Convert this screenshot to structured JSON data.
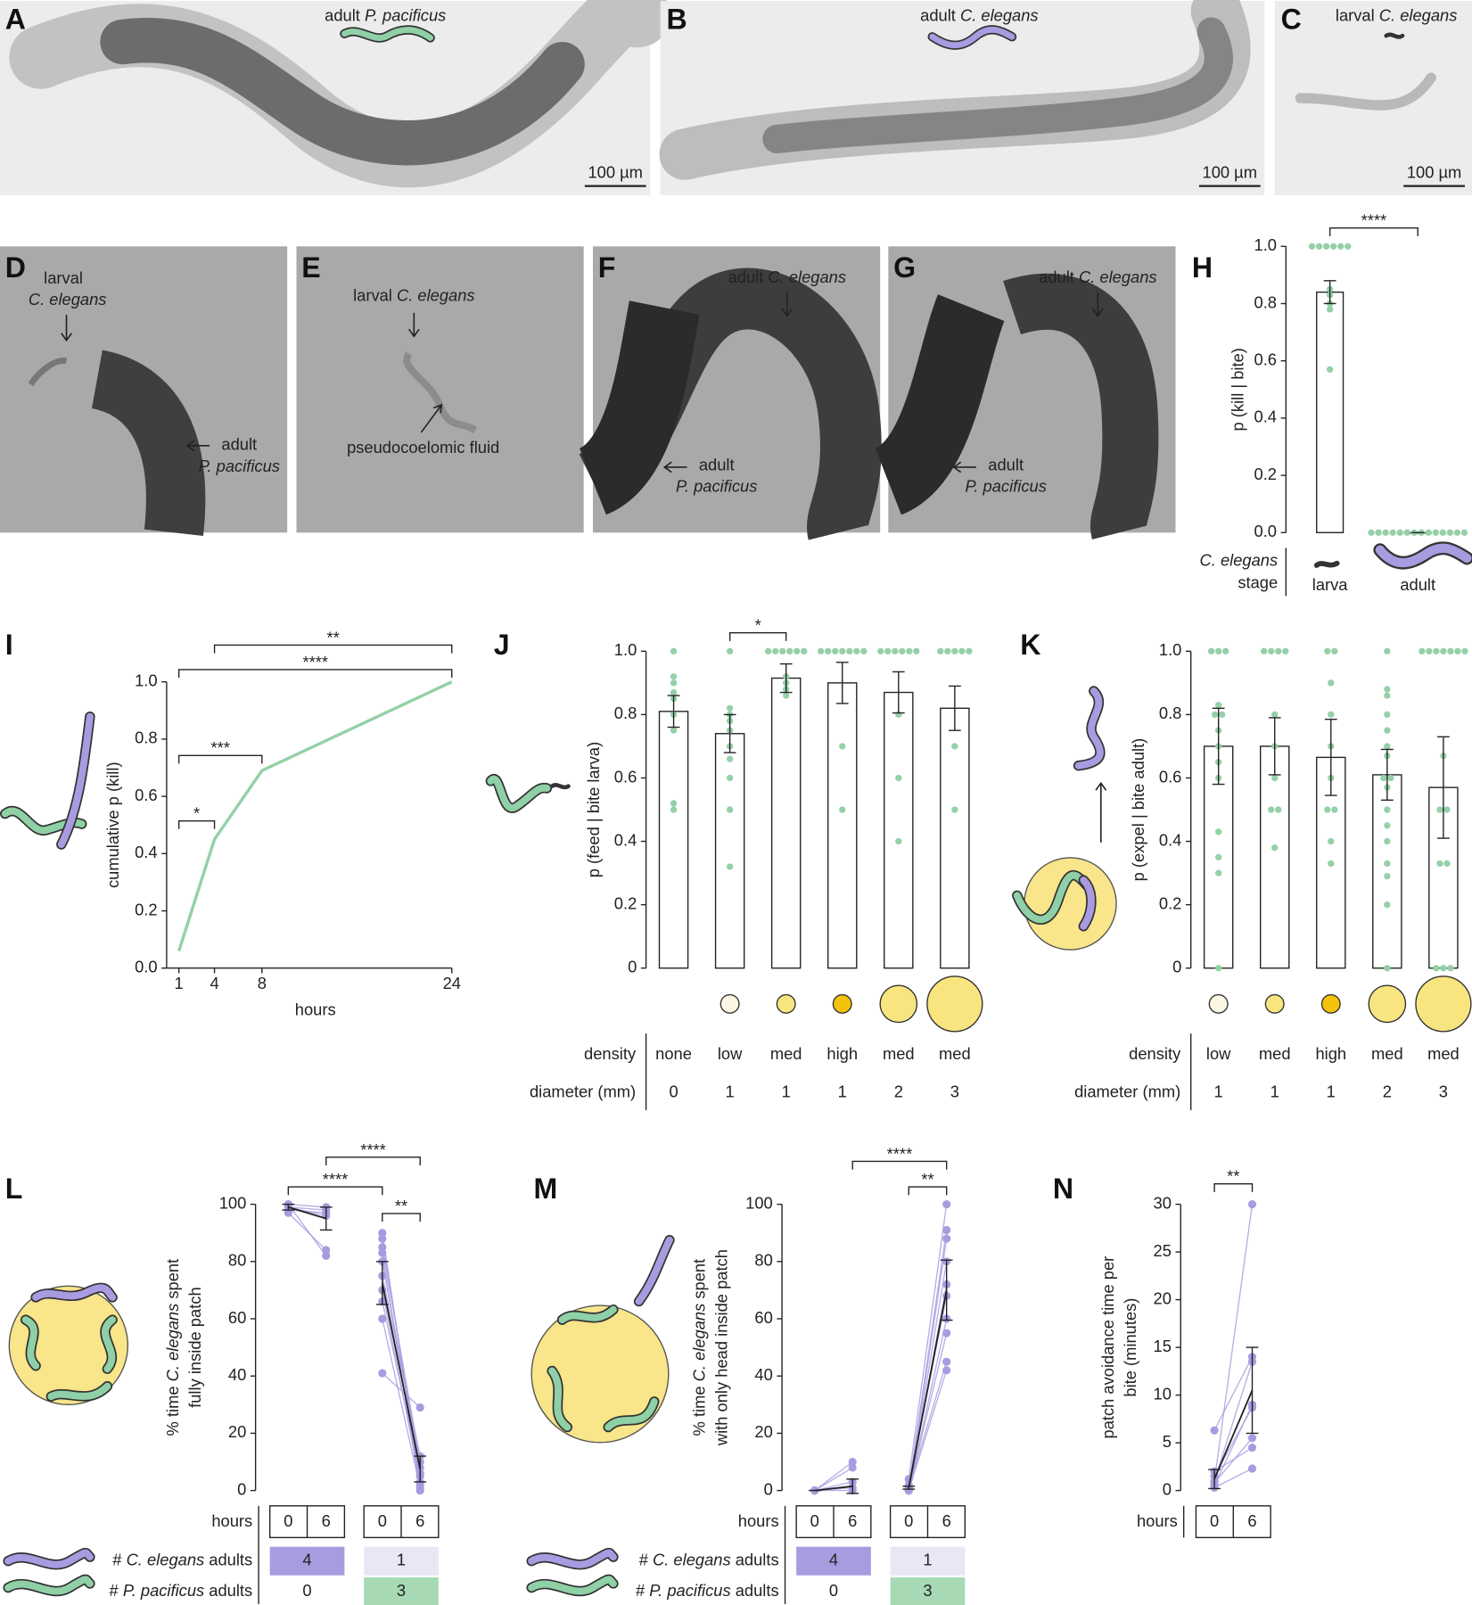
{
  "images": {
    "A": {
      "letter": "A",
      "caption": [
        "adult ",
        "P. pacificus"
      ],
      "scale_bar": "100 µm"
    },
    "B": {
      "letter": "B",
      "caption": [
        "adult ",
        "C. elegans"
      ],
      "scale_bar": "100 µm"
    },
    "C": {
      "letter": "C",
      "caption": [
        "larval ",
        "C. elegans"
      ],
      "scale_bar": "100 µm"
    },
    "D": {
      "letter": "D",
      "labels": [
        "larval",
        "C. elegans",
        "adult",
        "P. pacificus"
      ]
    },
    "E": {
      "letter": "E",
      "labels": [
        "larval ",
        "C. elegans",
        "pseudocoelomic fluid"
      ]
    },
    "F": {
      "letter": "F",
      "labels": [
        "adult ",
        "C. elegans",
        "adult",
        "P. pacificus"
      ]
    },
    "G": {
      "letter": "G",
      "labels": [
        "adult ",
        "C. elegans",
        "adult",
        "P. pacificus"
      ]
    }
  },
  "chart_data": [
    {
      "letter": "H",
      "type": "bar",
      "categories": [
        "larva",
        "adult"
      ],
      "values": [
        0.84,
        0
      ],
      "errors": [
        0.04,
        0
      ],
      "points": [
        [
          1,
          1,
          1,
          1,
          1,
          1,
          0.8,
          0.83,
          0.85,
          0.78,
          0.57
        ],
        [
          0,
          0,
          0,
          0,
          0,
          0,
          0,
          0,
          0,
          0,
          0,
          0,
          0,
          0
        ]
      ],
      "ylabel": "p (kill | bite)",
      "ylim": [
        0,
        1
      ],
      "yticks": [
        {
          "value": 0,
          "label": "0.0"
        },
        0.2,
        0.4,
        0.6,
        0.8,
        {
          "value": 1,
          "label": "1.0"
        }
      ],
      "significance": [
        {
          "from": 0,
          "to": 1,
          "label": "****"
        }
      ],
      "row_labels": [
        "C. elegans",
        "stage"
      ],
      "color": "#95d0a8"
    },
    {
      "letter": "I",
      "type": "line",
      "x": [
        1,
        4,
        8,
        24
      ],
      "values": [
        0.06,
        0.45,
        0.69,
        1.0
      ],
      "xlim": [
        1,
        24
      ],
      "xticks": [
        1,
        4,
        8,
        24
      ],
      "ylim": [
        0,
        1
      ],
      "yticks": [
        {
          "value": 0,
          "label": "0.0"
        },
        0.2,
        0.4,
        0.6,
        0.8,
        {
          "value": 1,
          "label": "1.0"
        }
      ],
      "xlabel": "hours",
      "ylabel": "cumulative p (kill)",
      "color": "#95d0a8",
      "significance": [
        {
          "from": 1,
          "to": 4,
          "label": "*"
        },
        {
          "from": 1,
          "to": 8,
          "label": "***"
        },
        {
          "from": 1,
          "to": 24,
          "label": "****"
        },
        {
          "from": 4,
          "to": 24,
          "label": "**"
        }
      ]
    },
    {
      "letter": "J",
      "type": "bar",
      "values": [
        0.81,
        0.74,
        0.915,
        0.9,
        0.87,
        0.82
      ],
      "errors": [
        0.05,
        0.06,
        0.045,
        0.065,
        0.065,
        0.07
      ],
      "points": [
        [
          1,
          0.92,
          0.9,
          0.87,
          0.85,
          0.8,
          0.75,
          0.52,
          0.5
        ],
        [
          1,
          0.82,
          0.8,
          0.78,
          0.75,
          0.7,
          0.66,
          0.6,
          0.5,
          0.32
        ],
        [
          1,
          1,
          1,
          1,
          1,
          1,
          0.9,
          0.88,
          0.86,
          0.92
        ],
        [
          1,
          1,
          1,
          1,
          1,
          1,
          1,
          0.7,
          0.5
        ],
        [
          1,
          1,
          1,
          1,
          1,
          1,
          0.8,
          0.6,
          0.4
        ],
        [
          1,
          1,
          1,
          1,
          1,
          0.7,
          0.5
        ]
      ],
      "ylabel": "p (feed | bite larva)",
      "ylim": [
        0,
        1
      ],
      "yticks": [
        {
          "value": 0,
          "label": "0"
        },
        0.2,
        0.4,
        0.6,
        0.8,
        {
          "value": 1,
          "label": "1.0"
        }
      ],
      "density_label": "density",
      "density": [
        "none",
        "low",
        "med",
        "high",
        "med",
        "med"
      ],
      "diameter_label": "diameter (mm)",
      "diameter": [
        0,
        1,
        1,
        1,
        2,
        3
      ],
      "patch_colors": [
        null,
        "#fbf7e4",
        "#f9e57f",
        "#f4c20d",
        "#f9e57f",
        "#f9e57f"
      ],
      "significance": [
        {
          "from": 1,
          "to": 2,
          "label": "*"
        }
      ],
      "color": "#95d0a8"
    },
    {
      "letter": "K",
      "type": "bar",
      "values": [
        0.7,
        0.7,
        0.665,
        0.61,
        0.57
      ],
      "errors": [
        0.12,
        0.09,
        0.12,
        0.08,
        0.16
      ],
      "points": [
        [
          1,
          1,
          1,
          0.83,
          0.8,
          0.8,
          0.75,
          0.7,
          0.65,
          0.6,
          0.43,
          0.35,
          0.3,
          0
        ],
        [
          1,
          1,
          1,
          1,
          0.8,
          0.7,
          0.6,
          0.5,
          0.5,
          0.38
        ],
        [
          1,
          1,
          0.9,
          0.8,
          0.7,
          0.6,
          0.5,
          0.5,
          0.4,
          0.33
        ],
        [
          1,
          0.88,
          0.86,
          0.8,
          0.75,
          0.7,
          0.67,
          0.6,
          0.6,
          0.57,
          0.5,
          0.45,
          0.4,
          0.33,
          0.29,
          0.2,
          0
        ],
        [
          1,
          1,
          1,
          1,
          1,
          1,
          1,
          0.67,
          0.5,
          0.5,
          0.33,
          0.33,
          0,
          0,
          0
        ]
      ],
      "ylabel": "p (expel | bite adult)",
      "ylim": [
        0,
        1
      ],
      "yticks": [
        {
          "value": 0,
          "label": "0"
        },
        0.2,
        0.4,
        0.6,
        0.8,
        {
          "value": 1,
          "label": "1.0"
        }
      ],
      "density_label": "density",
      "density": [
        "low",
        "med",
        "high",
        "med",
        "med"
      ],
      "diameter_label": "diameter (mm)",
      "diameter": [
        1,
        1,
        1,
        2,
        3
      ],
      "patch_colors": [
        "#fbf7e4",
        "#f9e57f",
        "#f4c20d",
        "#f9e57f",
        "#f9e57f"
      ],
      "significance": [],
      "color": "#95d0a8"
    },
    {
      "letter": "L",
      "type": "paired",
      "ylabel": [
        "% time ",
        "C. elegans",
        " spent"
      ],
      "ylabel2": "fully inside patch",
      "ylim": [
        0,
        100
      ],
      "yticks": [
        0,
        20,
        40,
        60,
        80,
        100
      ],
      "color": "#a99be0",
      "hours_label": "hours",
      "ce_label": [
        "# ",
        "C. elegans",
        " adults"
      ],
      "pp_label": [
        "# ",
        "P. pacificus",
        " adults"
      ],
      "groups": [
        {
          "hours": [
            0,
            6
          ],
          "means": [
            99,
            95
          ],
          "errors": [
            1,
            4
          ],
          "ce_count": 4,
          "pp_count": 0,
          "ce_color": "#a99be0",
          "pp_color": "#ffffff",
          "pairs": [
            [
              100,
              99
            ],
            [
              99,
              98
            ],
            [
              98,
              97
            ],
            [
              97,
              84
            ],
            [
              100,
              82
            ],
            [
              99,
              96
            ]
          ]
        },
        {
          "hours": [
            0,
            6
          ],
          "means": [
            72.5,
            7.5
          ],
          "errors": [
            7.5,
            4.5
          ],
          "ce_count": 1,
          "pp_count": 3,
          "ce_color": "#e9e6f6",
          "pp_color": "#a7d9b4",
          "pairs": [
            [
              90,
              2
            ],
            [
              88,
              5
            ],
            [
              85,
              10
            ],
            [
              80,
              8
            ],
            [
              75,
              12
            ],
            [
              70,
              3
            ],
            [
              66,
              6
            ],
            [
              41,
              29
            ],
            [
              60,
              1
            ],
            [
              83,
              0
            ]
          ]
        }
      ],
      "significance": [
        {
          "from": 0,
          "to": 2,
          "label": "****"
        },
        {
          "from": 1,
          "to": 3,
          "label": "****"
        },
        {
          "from": 2,
          "to": 3,
          "label": "**"
        }
      ]
    },
    {
      "letter": "M",
      "type": "paired",
      "ylabel": [
        "% time ",
        "C. elegans",
        " spent"
      ],
      "ylabel2": "with only head inside patch",
      "ylim": [
        0,
        100
      ],
      "yticks": [
        0,
        20,
        40,
        60,
        80,
        100
      ],
      "color": "#a99be0",
      "hours_label": "hours",
      "ce_label": [
        "# ",
        "C. elegans",
        " adults"
      ],
      "pp_label": [
        "# ",
        "P. pacificus",
        " adults"
      ],
      "groups": [
        {
          "hours": [
            0,
            6
          ],
          "means": [
            0,
            1.5
          ],
          "errors": [
            0,
            2.5
          ],
          "ce_count": 4,
          "pp_count": 0,
          "ce_color": "#a99be0",
          "pp_color": "#ffffff",
          "pairs": [
            [
              0,
              10
            ],
            [
              0,
              8
            ],
            [
              0,
              3
            ],
            [
              0,
              1
            ],
            [
              0,
              0
            ]
          ]
        },
        {
          "hours": [
            0,
            6
          ],
          "means": [
            1,
            70
          ],
          "errors": [
            0.5,
            10.5
          ],
          "ce_count": 1,
          "pp_count": 3,
          "ce_color": "#e9e6f6",
          "pp_color": "#a7d9b4",
          "pairs": [
            [
              4,
              100
            ],
            [
              1,
              91
            ],
            [
              0,
              88
            ],
            [
              0,
              80
            ],
            [
              0,
              72
            ],
            [
              2,
              68
            ],
            [
              0,
              60
            ],
            [
              1,
              45
            ],
            [
              0,
              42
            ],
            [
              0,
              55
            ]
          ]
        }
      ],
      "significance": [
        {
          "from": 1,
          "to": 3,
          "label": "****"
        },
        {
          "from": 2,
          "to": 3,
          "label": "**"
        }
      ]
    },
    {
      "letter": "N",
      "type": "paired",
      "ylabel": [
        "patch avoidance time per"
      ],
      "ylabel2": "bite (minutes)",
      "ylim": [
        0,
        30
      ],
      "yticks": [
        0,
        5,
        10,
        15,
        20,
        25,
        30
      ],
      "color": "#a99be0",
      "hours_label": "hours",
      "groups": [
        {
          "hours": [
            0,
            6
          ],
          "means": [
            1.2,
            10.5
          ],
          "errors": [
            1,
            4.5
          ],
          "pairs": [
            [
              6.3,
              14
            ],
            [
              1,
              30
            ],
            [
              0.5,
              9
            ],
            [
              1.5,
              8.7
            ],
            [
              0.8,
              5.5
            ],
            [
              2,
              4.5
            ],
            [
              0.3,
              2.3
            ],
            [
              1,
              13.5
            ]
          ]
        }
      ],
      "significance": [
        {
          "from": 0,
          "to": 1,
          "label": "**"
        }
      ]
    }
  ]
}
